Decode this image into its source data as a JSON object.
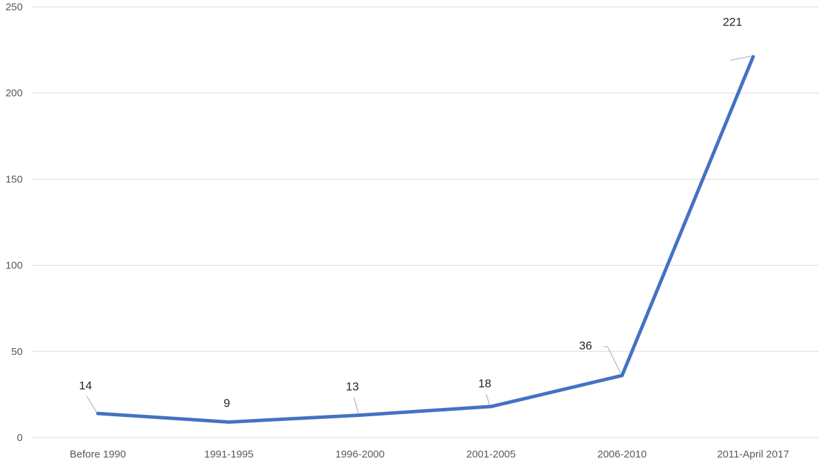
{
  "chart_data": {
    "type": "line",
    "categories": [
      "Before 1990",
      "1991-1995",
      "1996-2000",
      "2001-2005",
      "2006-2010",
      "2011-April 2017"
    ],
    "series": [
      {
        "values": [
          14,
          9,
          13,
          18,
          36,
          221
        ],
        "color": "#4472c4"
      }
    ],
    "data_labels": [
      "14",
      "9",
      "13",
      "18",
      "36",
      "221"
    ],
    "ylim": [
      0,
      250
    ],
    "yticks": [
      "0",
      "50",
      "100",
      "150",
      "200",
      "250"
    ],
    "grid": true,
    "legend": "none"
  }
}
